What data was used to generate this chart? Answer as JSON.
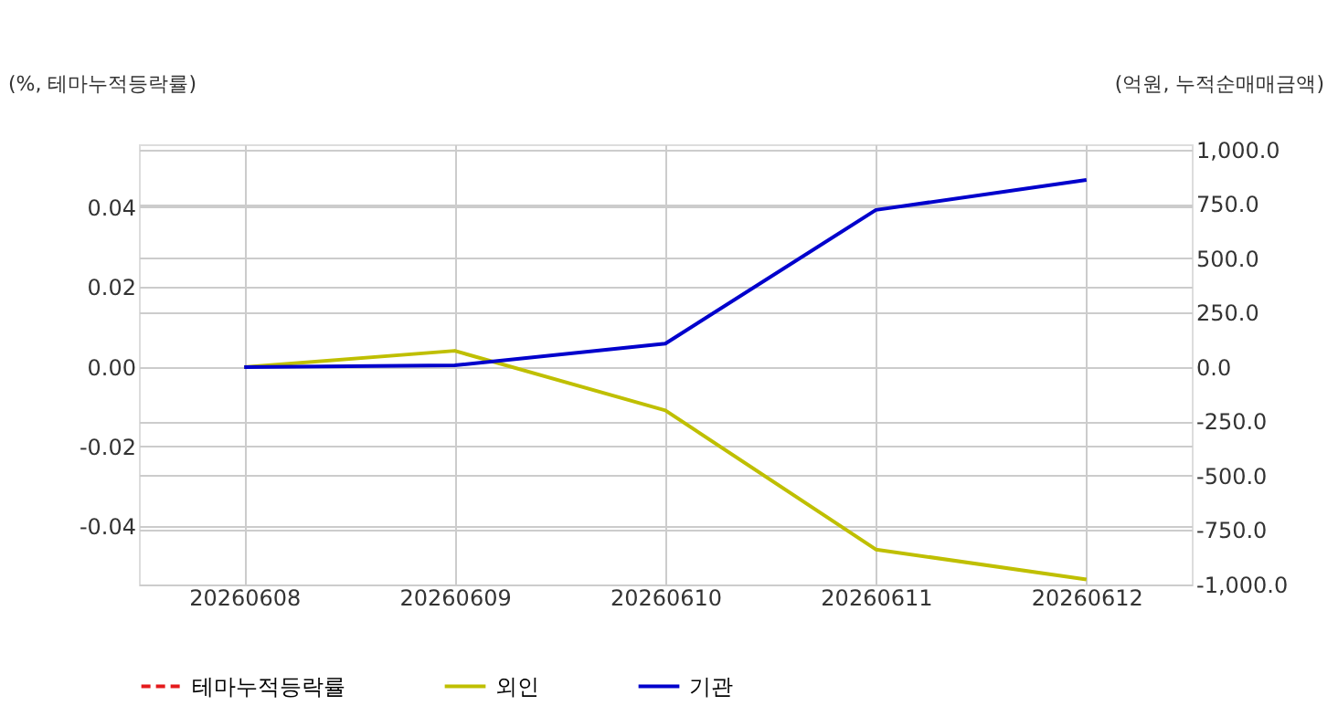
{
  "chart_data": {
    "type": "line",
    "ylabel": "(%, 테마누적등락률)",
    "y2label": "(억원, 누적순매매금액)",
    "categories": [
      "20260608",
      "20260609",
      "20260610",
      "20260611",
      "20260612"
    ],
    "series": [
      {
        "name": "테마누적등락률",
        "color": "#e41a1c",
        "line_style": "dashed",
        "values": [
          null,
          null,
          null,
          null,
          null
        ]
      },
      {
        "name": "외인",
        "color": "#bfbf00",
        "axis": "y2",
        "line_style": "solid",
        "values": [
          0,
          75,
          -199,
          -839,
          -977
        ]
      },
      {
        "name": "기관",
        "color": "#0000cc",
        "axis": "y2",
        "line_style": "solid",
        "values": [
          0,
          8,
          108,
          723,
          861
        ]
      }
    ],
    "ylim": [
      -0.0546,
      0.0558
    ],
    "yticks": [
      {
        "value": -0.04,
        "label": "-0.04"
      },
      {
        "value": -0.02,
        "label": "-0.02"
      },
      {
        "value": 0,
        "label": "0.00"
      },
      {
        "value": 0.02,
        "label": "0.02"
      },
      {
        "value": 0.04,
        "label": "0.04"
      }
    ],
    "y2lim": [
      -1000,
      1025
    ],
    "y2ticks": [
      {
        "value": -1000,
        "label": "-1,000.0"
      },
      {
        "value": -750,
        "label": "-750.0"
      },
      {
        "value": -500,
        "label": "-500.0"
      },
      {
        "value": -250,
        "label": "-250.0"
      },
      {
        "value": 0,
        "label": "0.0"
      },
      {
        "value": 250,
        "label": "250.0"
      },
      {
        "value": 500,
        "label": "500.0"
      },
      {
        "value": 750,
        "label": "750.0"
      },
      {
        "value": 1000,
        "label": "1,000.0"
      }
    ],
    "grid": true,
    "legend": "bottom"
  }
}
